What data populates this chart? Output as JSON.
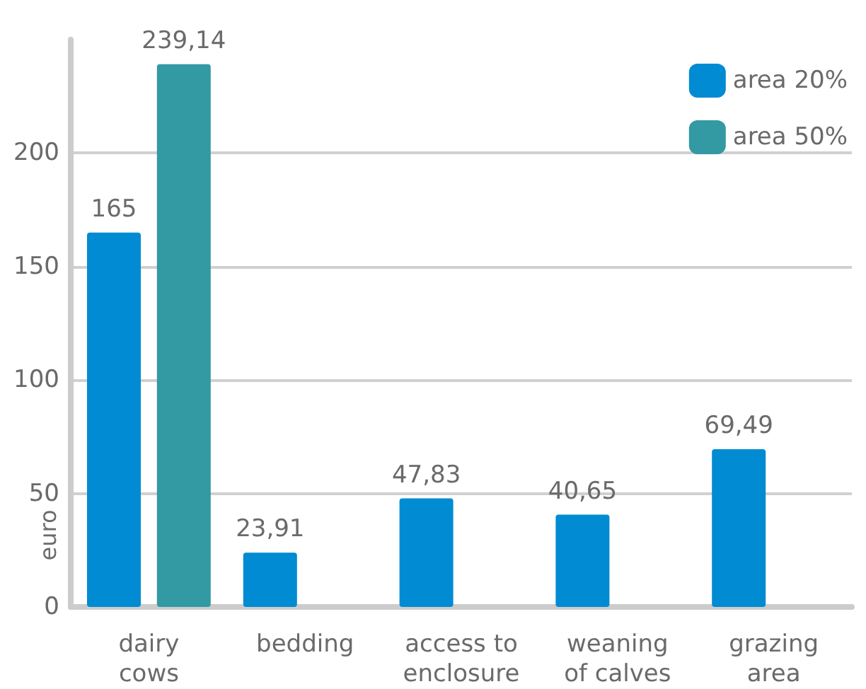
{
  "chart_data": {
    "type": "bar",
    "ylabel": "euro",
    "categories": [
      "dairy\ncows",
      "bedding",
      "access to\nenclosure",
      "weaning\nof calves",
      "grazing\narea"
    ],
    "series": [
      {
        "name": "area 20%",
        "color": "#008bd2",
        "values": [
          165,
          23.91,
          47.83,
          40.65,
          69.49
        ],
        "value_labels": [
          "165",
          "23,91",
          "47,83",
          "40,65",
          "69,49"
        ]
      },
      {
        "name": "area 50%",
        "color": "#3399a3",
        "values": [
          239.14,
          null,
          null,
          null,
          null
        ],
        "value_labels": [
          "239,14",
          null,
          null,
          null,
          null
        ]
      }
    ],
    "ylim": [
      0,
      250
    ],
    "yticks": [
      0,
      50,
      100,
      150,
      200
    ],
    "grid": "y",
    "legend": "top right"
  }
}
